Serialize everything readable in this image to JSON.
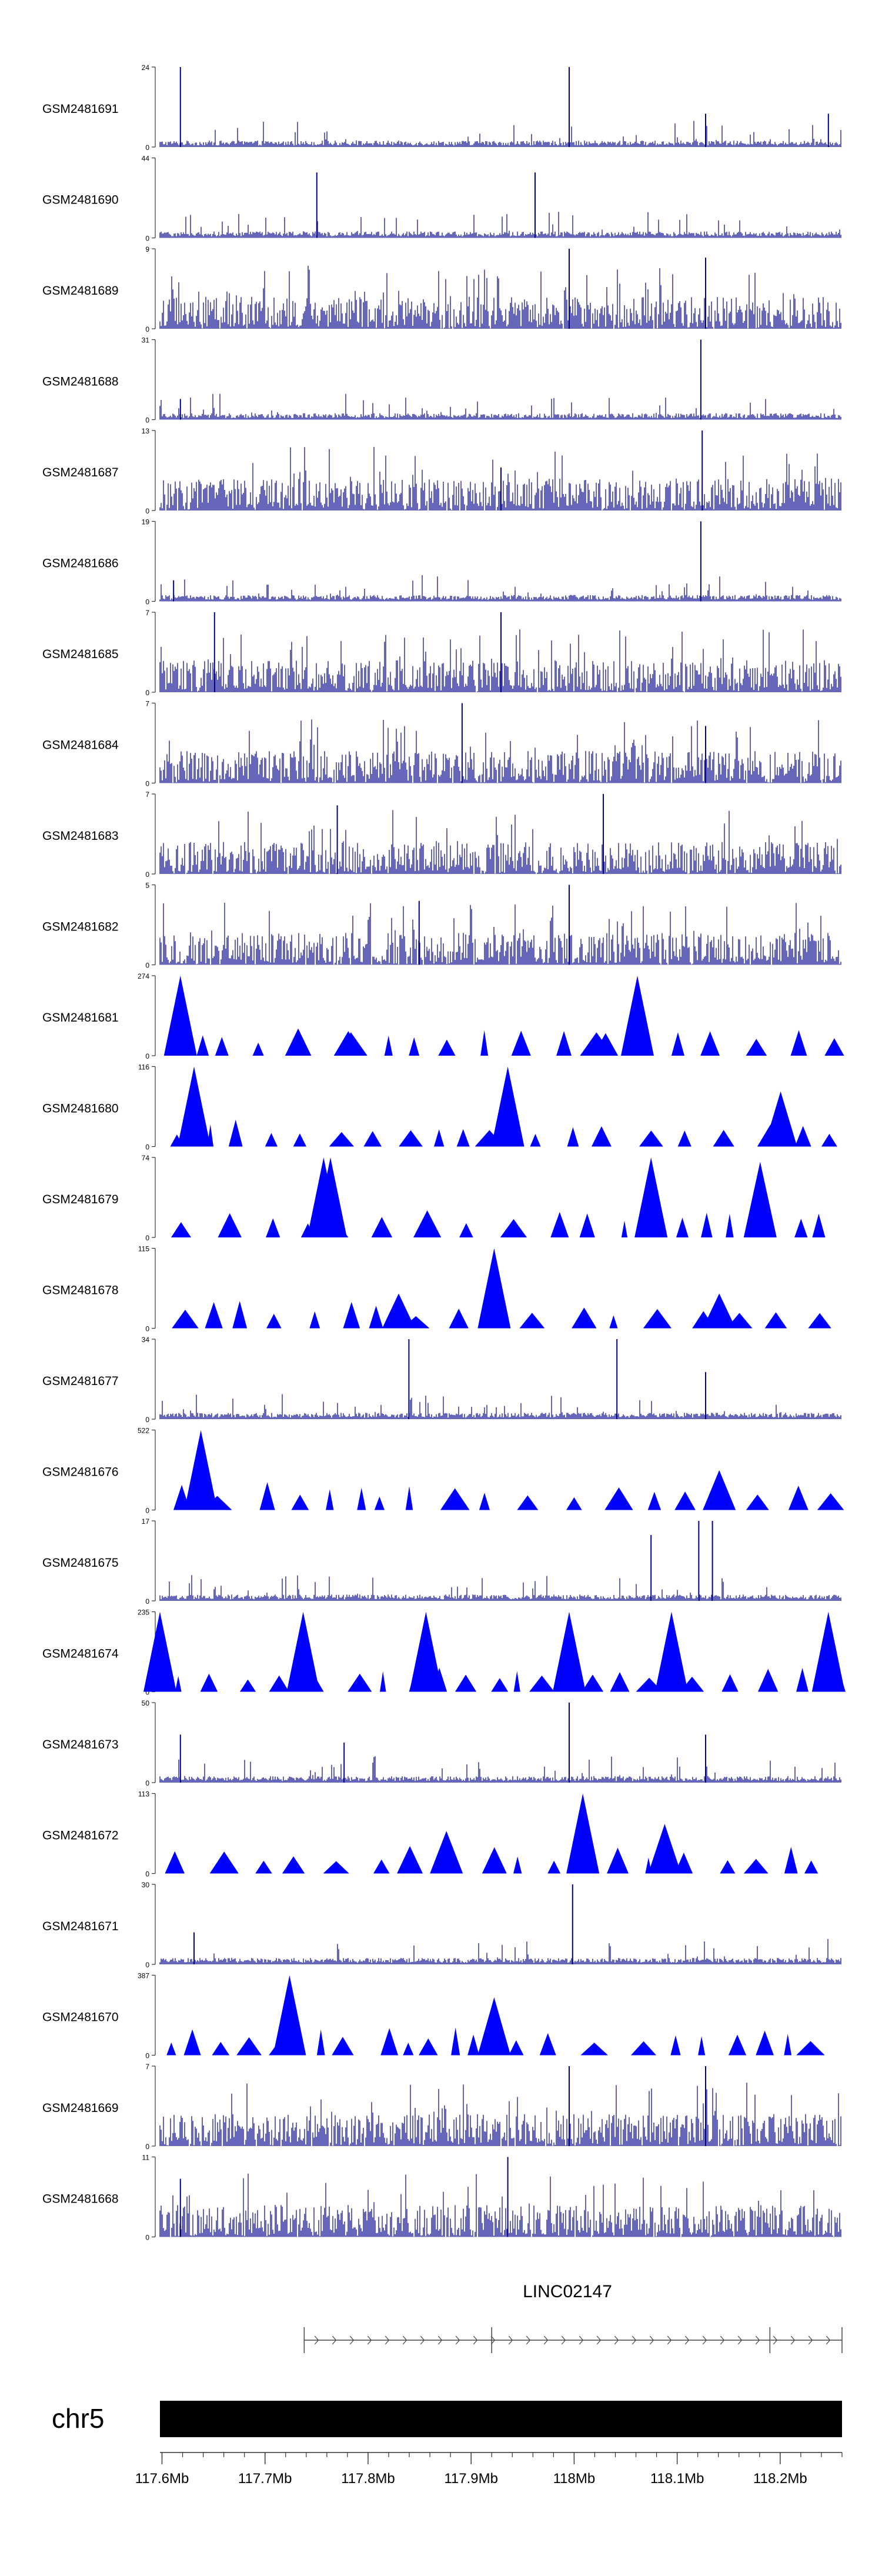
{
  "chart_data": {
    "type": "genome-browser",
    "title": "",
    "tracks": [
      {
        "sample": "GSM2481691",
        "ymax": 24,
        "ymin": 0,
        "style": "bars",
        "peaks": [
          [
            0.03,
            24
          ],
          [
            0.6,
            24
          ],
          [
            0.8,
            10
          ],
          [
            0.98,
            10
          ]
        ]
      },
      {
        "sample": "GSM2481690",
        "ymax": 44,
        "ymin": 0,
        "style": "bars",
        "peaks": [
          [
            0.23,
            36
          ],
          [
            0.55,
            36
          ]
        ]
      },
      {
        "sample": "GSM2481689",
        "ymax": 9,
        "ymin": 0,
        "style": "bars",
        "peaks": [
          [
            0.6,
            9
          ],
          [
            0.8,
            8
          ]
        ]
      },
      {
        "sample": "GSM2481688",
        "ymax": 31,
        "ymin": 0,
        "style": "bars",
        "peaks": [
          [
            0.793,
            31
          ],
          [
            0.03,
            8
          ]
        ]
      },
      {
        "sample": "GSM2481687",
        "ymax": 13,
        "ymin": 0,
        "style": "bars",
        "peaks": [
          [
            0.795,
            13
          ],
          [
            0.5,
            7
          ]
        ]
      },
      {
        "sample": "GSM2481686",
        "ymax": 19,
        "ymin": 0,
        "style": "bars",
        "peaks": [
          [
            0.793,
            19
          ],
          [
            0.02,
            5
          ]
        ]
      },
      {
        "sample": "GSM2481685",
        "ymax": 7,
        "ymin": 0,
        "style": "bars",
        "peaks": [
          [
            0.08,
            7
          ],
          [
            0.5,
            7
          ]
        ]
      },
      {
        "sample": "GSM2481684",
        "ymax": 7,
        "ymin": 0,
        "style": "bars",
        "peaks": [
          [
            0.443,
            7
          ],
          [
            0.8,
            5
          ]
        ]
      },
      {
        "sample": "GSM2481683",
        "ymax": 7,
        "ymin": 0,
        "style": "bars",
        "peaks": [
          [
            0.65,
            7
          ],
          [
            0.26,
            6
          ]
        ]
      },
      {
        "sample": "GSM2481682",
        "ymax": 5,
        "ymin": 0,
        "style": "bars",
        "peaks": [
          [
            0.6,
            5
          ],
          [
            0.38,
            4
          ]
        ]
      },
      {
        "sample": "GSM2481681",
        "ymax": 274,
        "ymin": 0,
        "style": "triangles",
        "peaks": [
          [
            0.03,
            274
          ],
          [
            0.7,
            274
          ],
          [
            0.28,
            80
          ],
          [
            0.64,
            80
          ]
        ]
      },
      {
        "sample": "GSM2481680",
        "ymax": 116,
        "ymin": 0,
        "style": "triangles",
        "peaks": [
          [
            0.05,
            116
          ],
          [
            0.51,
            116
          ],
          [
            0.91,
            80
          ]
        ]
      },
      {
        "sample": "GSM2481679",
        "ymax": 74,
        "ymin": 0,
        "style": "triangles",
        "peaks": [
          [
            0.24,
            74
          ],
          [
            0.25,
            74
          ],
          [
            0.72,
            74
          ],
          [
            0.88,
            70
          ]
        ]
      },
      {
        "sample": "GSM2481678",
        "ymax": 115,
        "ymin": 0,
        "style": "triangles",
        "peaks": [
          [
            0.49,
            115
          ],
          [
            0.35,
            50
          ],
          [
            0.82,
            50
          ]
        ]
      },
      {
        "sample": "GSM2481677",
        "ymax": 34,
        "ymin": 0,
        "style": "bars",
        "peaks": [
          [
            0.365,
            34
          ],
          [
            0.67,
            34
          ],
          [
            0.8,
            20
          ]
        ]
      },
      {
        "sample": "GSM2481676",
        "ymax": 522,
        "ymin": 0,
        "style": "triangles",
        "peaks": [
          [
            0.06,
            522
          ],
          [
            0.82,
            260
          ]
        ]
      },
      {
        "sample": "GSM2481675",
        "ymax": 17,
        "ymin": 0,
        "style": "bars",
        "peaks": [
          [
            0.79,
            17
          ],
          [
            0.81,
            17
          ],
          [
            0.72,
            14
          ]
        ]
      },
      {
        "sample": "GSM2481674",
        "ymax": 235,
        "ymin": 0,
        "style": "triangles",
        "peaks": [
          [
            0,
            235
          ],
          [
            0.21,
            235
          ],
          [
            0.39,
            235
          ],
          [
            0.6,
            235
          ],
          [
            0.75,
            235
          ],
          [
            0.98,
            235
          ]
        ]
      },
      {
        "sample": "GSM2481673",
        "ymax": 50,
        "ymin": 0,
        "style": "bars",
        "peaks": [
          [
            0.6,
            50
          ],
          [
            0.8,
            30
          ],
          [
            0.03,
            30
          ],
          [
            0.27,
            25
          ]
        ]
      },
      {
        "sample": "GSM2481672",
        "ymax": 113,
        "ymin": 0,
        "style": "triangles",
        "peaks": [
          [
            0.62,
            113
          ],
          [
            0.42,
            60
          ],
          [
            0.74,
            70
          ]
        ]
      },
      {
        "sample": "GSM2481671",
        "ymax": 30,
        "ymin": 0,
        "style": "bars",
        "peaks": [
          [
            0.605,
            30
          ],
          [
            0.05,
            12
          ]
        ]
      },
      {
        "sample": "GSM2481670",
        "ymax": 387,
        "ymin": 0,
        "style": "triangles",
        "peaks": [
          [
            0.19,
            387
          ],
          [
            0.49,
            280
          ]
        ]
      },
      {
        "sample": "GSM2481669",
        "ymax": 7,
        "ymin": 0,
        "style": "bars",
        "peaks": [
          [
            0.6,
            7
          ],
          [
            0.8,
            7
          ]
        ]
      },
      {
        "sample": "GSM2481668",
        "ymax": 11,
        "ymin": 0,
        "style": "bars",
        "peaks": [
          [
            0.51,
            11
          ],
          [
            0.03,
            8
          ]
        ]
      }
    ],
    "gene": {
      "name": "LINC02147",
      "start_mb": 117.738,
      "end_mb": 118.26,
      "strand": "+"
    },
    "chromosome": "chr5",
    "x_range_mb": [
      117.598,
      118.26
    ],
    "x_ticks_mb": [
      117.6,
      117.7,
      117.8,
      117.9,
      118.0,
      118.1,
      118.2
    ],
    "x_tick_labels": [
      "117.6Mb",
      "117.7Mb",
      "117.8Mb",
      "117.9Mb",
      "118Mb",
      "118.1Mb",
      "118.2Mb"
    ],
    "colors": {
      "bars": "#00008b",
      "triangles": "#0000ff",
      "ideogram": "#000000",
      "axis": "#333333",
      "gene": "#444444"
    }
  }
}
